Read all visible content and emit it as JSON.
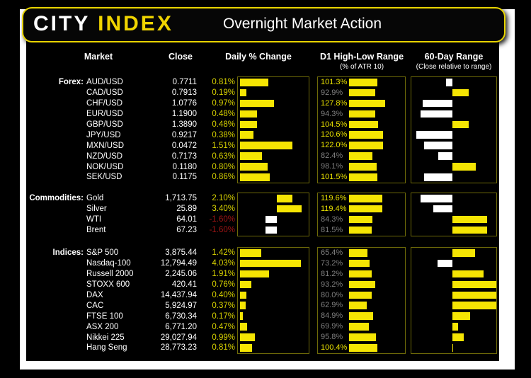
{
  "header": {
    "logo_city": "CITY",
    "logo_index": "INDEX",
    "title": "Overnight Market Action"
  },
  "columns": {
    "market": "Market",
    "close": "Close",
    "daily": "Daily % Change",
    "d1": "D1 High-Low Range",
    "d1_sub": "(% of ATR 10)",
    "d60": "60-Day Range",
    "d60_sub": "(Close relative to range)"
  },
  "colors": {
    "bar_yellow": "#f5e503",
    "bar_white": "#ffffff",
    "pct_positive": "#d8d200",
    "pct_negative": "#a31515",
    "d1_above_100": "#e8e000",
    "d1_below_100": "#7f7f7f",
    "box_border": "#6e6a08",
    "logo_yellow": "#f0d400",
    "header_border": "#e8d400"
  },
  "chart_data": {
    "type": "table",
    "title": "Overnight Market Action",
    "notes": "Three bar charts per row: daily % change (yellow positive / white negative), D1 high-low range as % of ATR10 (yellow bars, label yellow when >=100%), and close position within 60-day range (signed fraction, yellow right of baseline / white left of baseline).",
    "sections": [
      {
        "label": "Forex:",
        "daily_axis": {
          "baseline_frac": 0.03,
          "frac_per_pct": 0.49
        },
        "rows": [
          {
            "market": "AUD/USD",
            "close": "0.7711",
            "daily_pct": 0.81,
            "daily_label": "0.81%",
            "d1_pct": 101.3,
            "d1_label": "101.3%",
            "range_pos": -0.15
          },
          {
            "market": "CAD/USD",
            "close": "0.7913",
            "daily_pct": 0.19,
            "daily_label": "0.19%",
            "d1_pct": 92.9,
            "d1_label": "92.9%",
            "range_pos": 0.38
          },
          {
            "market": "CHF/USD",
            "close": "1.0776",
            "daily_pct": 0.97,
            "daily_label": "0.97%",
            "d1_pct": 127.8,
            "d1_label": "127.8%",
            "range_pos": -0.73
          },
          {
            "market": "EUR/USD",
            "close": "1.1900",
            "daily_pct": 0.48,
            "daily_label": "0.48%",
            "d1_pct": 94.3,
            "d1_label": "94.3%",
            "range_pos": -0.78
          },
          {
            "market": "GBP/USD",
            "close": "1.3890",
            "daily_pct": 0.48,
            "daily_label": "0.48%",
            "d1_pct": 104.5,
            "d1_label": "104.5%",
            "range_pos": 0.37
          },
          {
            "market": "JPY/USD",
            "close": "0.9217",
            "daily_pct": 0.38,
            "daily_label": "0.38%",
            "d1_pct": 120.6,
            "d1_label": "120.6%",
            "range_pos": -0.88
          },
          {
            "market": "MXN/USD",
            "close": "0.0472",
            "daily_pct": 1.51,
            "daily_label": "1.51%",
            "d1_pct": 122.0,
            "d1_label": "122.0%",
            "range_pos": -0.69
          },
          {
            "market": "NZD/USD",
            "close": "0.7173",
            "daily_pct": 0.63,
            "daily_label": "0.63%",
            "d1_pct": 82.4,
            "d1_label": "82.4%",
            "range_pos": -0.34
          },
          {
            "market": "NOK/USD",
            "close": "0.1180",
            "daily_pct": 0.8,
            "daily_label": "0.80%",
            "d1_pct": 98.1,
            "d1_label": "98.1%",
            "range_pos": 0.54
          },
          {
            "market": "SEK/USD",
            "close": "0.1175",
            "daily_pct": 0.86,
            "daily_label": "0.86%",
            "d1_pct": 101.5,
            "d1_label": "101.5%",
            "range_pos": -0.68
          }
        ]
      },
      {
        "label": "Commodities:",
        "daily_axis": {
          "baseline_frac": 0.553,
          "frac_per_pct": 0.101
        },
        "rows": [
          {
            "market": "Gold",
            "close": "1,713.75",
            "daily_pct": 2.1,
            "daily_label": "2.10%",
            "d1_pct": 119.6,
            "d1_label": "119.6%",
            "range_pos": -0.78
          },
          {
            "market": "Silver",
            "close": "25.89",
            "daily_pct": 3.4,
            "daily_label": "3.40%",
            "d1_pct": 119.4,
            "d1_label": "119.4%",
            "range_pos": -0.47
          },
          {
            "market": "WTI",
            "close": "64.01",
            "daily_pct": -1.6,
            "daily_label": "-1.60%",
            "d1_pct": 84.3,
            "d1_label": "84.3%",
            "range_pos": 0.79
          },
          {
            "market": "Brent",
            "close": "67.23",
            "daily_pct": -1.6,
            "daily_label": "-1.60%",
            "d1_pct": 81.5,
            "d1_label": "81.5%",
            "range_pos": 0.79
          }
        ]
      },
      {
        "label": "Indices:",
        "daily_axis": {
          "baseline_frac": 0.03,
          "frac_per_pct": 0.214
        },
        "rows": [
          {
            "market": "S&P 500",
            "close": "3,875.44",
            "daily_pct": 1.42,
            "daily_label": "1.42%",
            "d1_pct": 65.4,
            "d1_label": "65.4%",
            "range_pos": 0.52
          },
          {
            "market": "Nasdaq-100",
            "close": "12,794.49",
            "daily_pct": 4.03,
            "daily_label": "4.03%",
            "d1_pct": 73.2,
            "d1_label": "73.2%",
            "range_pos": -0.36
          },
          {
            "market": "Russell 2000",
            "close": "2,245.06",
            "daily_pct": 1.91,
            "daily_label": "1.91%",
            "d1_pct": 81.2,
            "d1_label": "81.2%",
            "range_pos": 0.71
          },
          {
            "market": "STOXX 600",
            "close": "420.41",
            "daily_pct": 0.76,
            "daily_label": "0.76%",
            "d1_pct": 93.2,
            "d1_label": "93.2%",
            "range_pos": 1.0
          },
          {
            "market": "DAX",
            "close": "14,437.94",
            "daily_pct": 0.4,
            "daily_label": "0.40%",
            "d1_pct": 80.0,
            "d1_label": "80.0%",
            "range_pos": 1.0
          },
          {
            "market": "CAC",
            "close": "5,924.97",
            "daily_pct": 0.37,
            "daily_label": "0.37%",
            "d1_pct": 62.9,
            "d1_label": "62.9%",
            "range_pos": 1.0
          },
          {
            "market": "FTSE 100",
            "close": "6,730.34",
            "daily_pct": 0.17,
            "daily_label": "0.17%",
            "d1_pct": 84.9,
            "d1_label": "84.9%",
            "range_pos": 0.4
          },
          {
            "market": "ASX 200",
            "close": "6,771.20",
            "daily_pct": 0.47,
            "daily_label": "0.47%",
            "d1_pct": 69.9,
            "d1_label": "69.9%",
            "range_pos": 0.14
          },
          {
            "market": "Nikkei 225",
            "close": "29,027.94",
            "daily_pct": 0.99,
            "daily_label": "0.99%",
            "d1_pct": 95.8,
            "d1_label": "95.8%",
            "range_pos": 0.27
          },
          {
            "market": "Hang Seng",
            "close": "28,773.23",
            "daily_pct": 0.81,
            "daily_label": "0.81%",
            "d1_pct": 100.4,
            "d1_label": "100.4%",
            "range_pos": 0.03
          }
        ]
      }
    ],
    "d1_axis": {
      "bar_left_frac": 0.36,
      "frac_per_pct": 0.0032
    },
    "d60_axis": {
      "baseline_frac": 0.48,
      "right_halfwidth_frac": 0.52,
      "left_halfwidth_frac": 0.48
    }
  }
}
